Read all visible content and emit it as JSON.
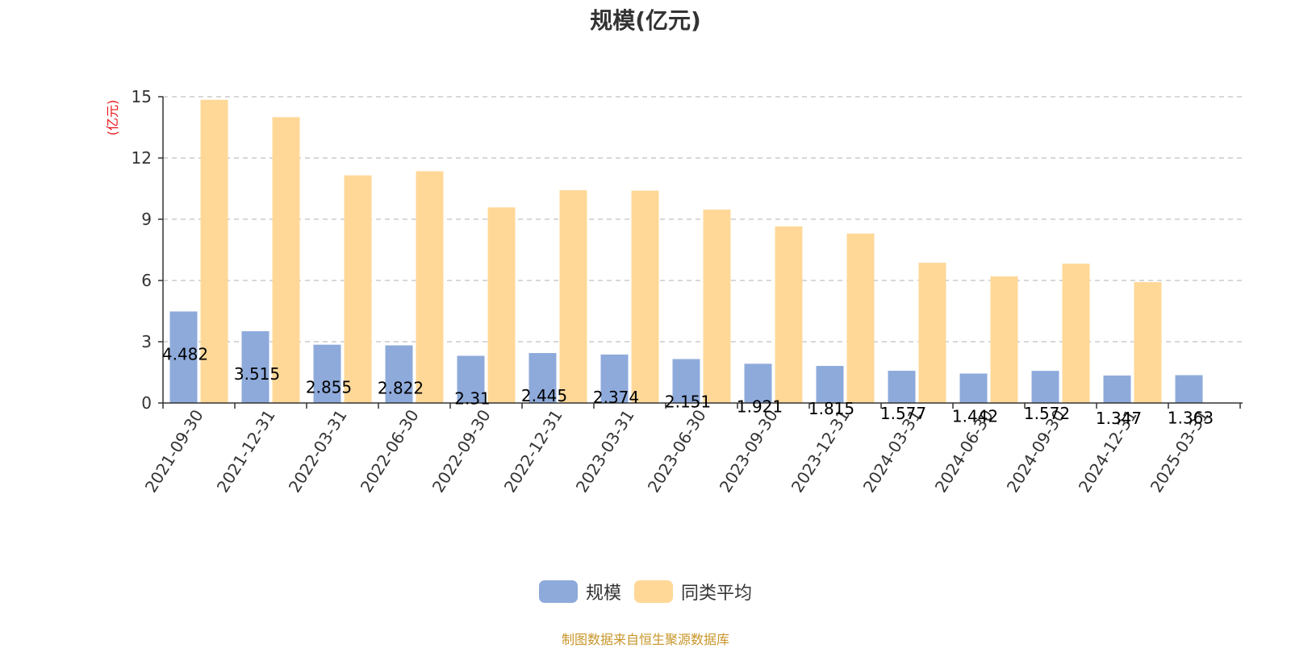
{
  "chart_data": {
    "type": "bar",
    "title": "规模(亿元)",
    "ylabel": "(亿元)",
    "xlabel": "",
    "ylim": [
      0,
      15
    ],
    "yticks": [
      0,
      3,
      6,
      9,
      12,
      15
    ],
    "grid": true,
    "legend_position": "bottom",
    "categories": [
      "2021-09-30",
      "2021-12-31",
      "2022-03-31",
      "2022-06-30",
      "2022-09-30",
      "2022-12-31",
      "2023-03-31",
      "2023-06-30",
      "2023-09-30",
      "2023-12-31",
      "2024-03-31",
      "2024-06-30",
      "2024-09-30",
      "2024-12-31",
      "2025-03-31"
    ],
    "series": [
      {
        "name": "规模",
        "color": "#8eaadb",
        "values": [
          4.482,
          3.515,
          2.855,
          2.822,
          2.31,
          2.445,
          2.374,
          2.151,
          1.921,
          1.815,
          1.577,
          1.442,
          1.572,
          1.347,
          1.363
        ],
        "data_labels": [
          "4.482",
          "3.515",
          "2.855",
          "2.822",
          "2.31",
          "2.445",
          "2.374",
          "2.151",
          "1.921",
          "1.815",
          "1.577",
          "1.442",
          "1.572",
          "1.347",
          "1.363"
        ]
      },
      {
        "name": "同类平均",
        "color": "#ffd898",
        "values": [
          14.85,
          14.0,
          11.15,
          11.35,
          9.58,
          10.42,
          10.4,
          9.47,
          8.65,
          8.3,
          6.87,
          6.2,
          6.82,
          5.92,
          null
        ]
      }
    ],
    "source": "制图数据来自恒生聚源数据库"
  }
}
